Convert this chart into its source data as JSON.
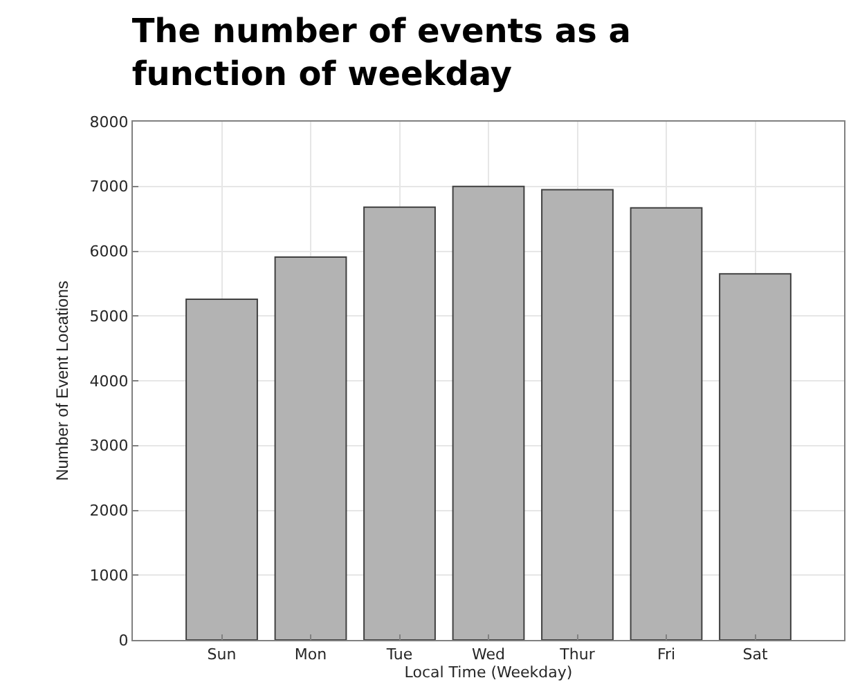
{
  "chart_data": {
    "type": "bar",
    "title": "The number of events as a function of weekday",
    "xlabel": "Local Time (Weekday)",
    "ylabel": "Number of Event Locations",
    "categories": [
      "Sun",
      "Mon",
      "Tue",
      "Wed",
      "Thur",
      "Fri",
      "Sat"
    ],
    "values": [
      5260,
      5910,
      6680,
      7000,
      6950,
      6670,
      5650
    ],
    "color": "#b3b3b3",
    "ylim": [
      0,
      8000
    ],
    "yticks": [
      0,
      1000,
      2000,
      3000,
      4000,
      5000,
      6000,
      7000,
      8000
    ],
    "grid": true
  }
}
